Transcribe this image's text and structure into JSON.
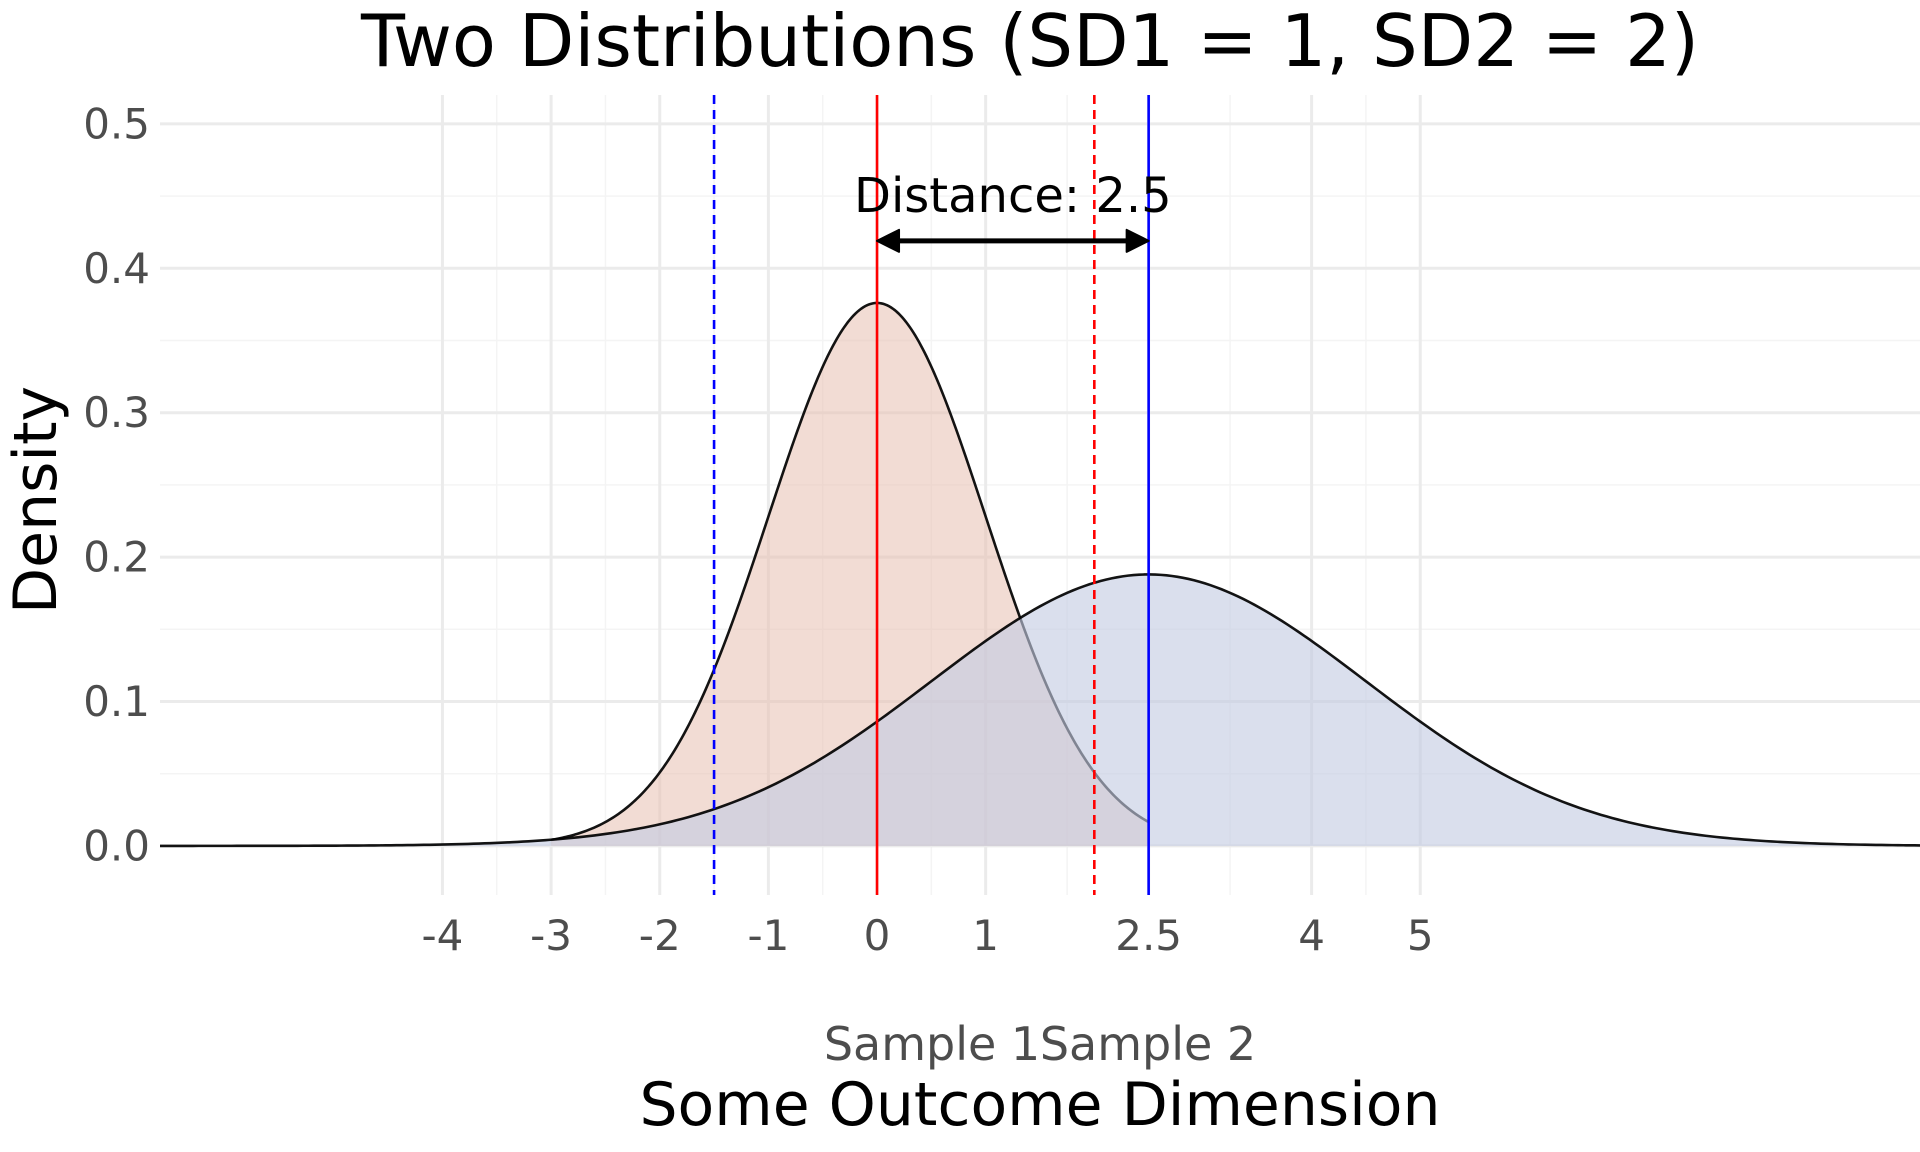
{
  "chart_data": {
    "type": "area",
    "title": "Two Distributions (SD1 = 1, SD2 = 2)",
    "xlabel": "Some Outcome Dimension",
    "ylabel": "Density",
    "xlim": [
      -6.6,
      9.6
    ],
    "ylim": [
      -0.034,
      0.52
    ],
    "x_ticks": [
      -4,
      -3,
      -2,
      -1,
      0,
      1,
      2.5,
      4,
      5
    ],
    "x_tick_labels": [
      "-4",
      "-3",
      "-2",
      "-1",
      "0",
      "1",
      "2.5",
      "4",
      "5"
    ],
    "y_ticks": [
      0.0,
      0.1,
      0.2,
      0.3,
      0.4,
      0.5
    ],
    "y_tick_labels": [
      "0.0",
      "0.1",
      "0.2",
      "0.3",
      "0.4",
      "0.5"
    ],
    "grid": true,
    "series": [
      {
        "name": "Sample 1",
        "distribution": "normal",
        "mean": 0,
        "sd": 1,
        "peak_density": 0.376,
        "x_range": [
          -3.0,
          2.5
        ],
        "color": "#000000",
        "fill": "#e8bfb1",
        "fill_opacity": 0.55
      },
      {
        "name": "Sample 2",
        "distribution": "normal",
        "mean": 2.5,
        "sd": 2,
        "peak_density": 0.188,
        "x_range": [
          -6.6,
          9.6
        ],
        "color": "#000000",
        "fill": "#c3cbe2",
        "fill_opacity": 0.62
      }
    ],
    "vertical_lines": [
      {
        "x": 0,
        "color": "#ff0000",
        "style": "solid"
      },
      {
        "x": 2.5,
        "color": "#0000ff",
        "style": "solid"
      },
      {
        "x": -1.5,
        "color": "#0000ff",
        "style": "dashed"
      },
      {
        "x": 2.0,
        "color": "#ff0000",
        "style": "dashed"
      }
    ],
    "annotations": [
      {
        "type": "double-arrow",
        "x_start": 0,
        "x_end": 2.5,
        "y": 0.419,
        "color": "#000000"
      },
      {
        "type": "text",
        "text": "Distance: 2.5",
        "x": 1.25,
        "y": 0.45
      }
    ],
    "legend": {
      "placement": "bottom",
      "labels": [
        "Sample 1",
        "Sample 2"
      ]
    }
  }
}
